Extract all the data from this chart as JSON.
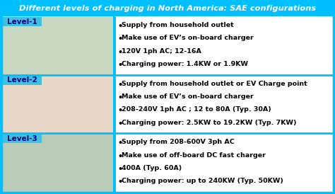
{
  "title": "Different levels of charging in North America: SAE configurations",
  "title_bg": "#00BFFF",
  "title_color": "#FFFFFF",
  "title_fontsize": 8.2,
  "outer_bg": "#00BFFF",
  "levels": [
    "Level-1",
    "Level-2",
    "Level-3"
  ],
  "level_text_color": "#000080",
  "bullet_points": [
    [
      "Supply from household outlet",
      "Make use of EV’s on-board charger",
      "120V 1ph AC; 12-16A",
      "Charging power: 1.4KW or 1.9KW"
    ],
    [
      "Supply from household outlet or EV Charge point",
      "Make use of EV’s on-board charger",
      "208-240V 1ph AC ; 12 to 80A (Typ. 30A)",
      "Charging power: 2.5KW to 19.2KW (Typ. 7KW)"
    ],
    [
      "Supply from 208-600V 3ph AC",
      "Make use of off-board DC fast charger",
      "400A (Typ. 60A)",
      "Charging power: up to 240KW (Typ. 50KW)"
    ]
  ],
  "left_bg": "#D8E8D8",
  "right_bg": "#FFFFFF",
  "label_bg": "#40C0E0",
  "divider_color": "#00BFFF",
  "text_fontsize": 6.8,
  "label_fontsize": 7.5,
  "fig_width": 4.74,
  "fig_height": 2.74,
  "dpi": 100
}
